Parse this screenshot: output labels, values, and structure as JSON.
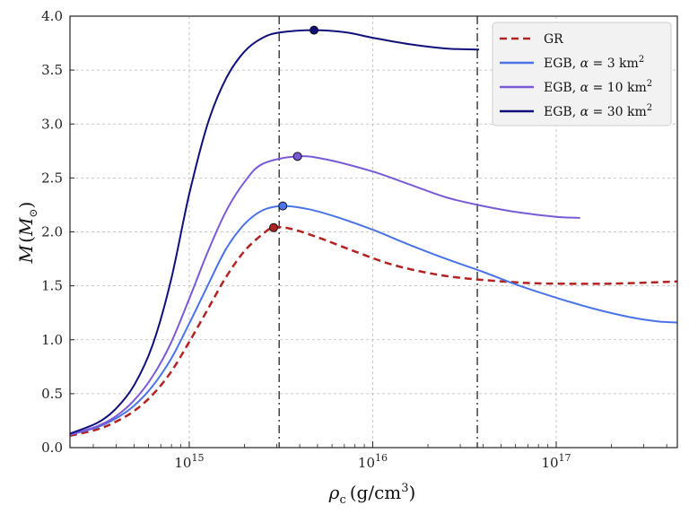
{
  "chart_data": {
    "type": "line",
    "xscale": "log",
    "xlim_log10": [
      14.35,
      17.66
    ],
    "ylim": [
      0.0,
      4.0
    ],
    "yticks": [
      0.0,
      0.5,
      1.0,
      1.5,
      2.0,
      2.5,
      3.0,
      3.5,
      4.0
    ],
    "ytick_labels": [
      "0.0",
      "0.5",
      "1.0",
      "1.5",
      "2.0",
      "2.5",
      "3.0",
      "3.5",
      "4.0"
    ],
    "xticks_log10": [
      15,
      16,
      17
    ],
    "xtick_labels": [
      {
        "base": "10",
        "exp": "15"
      },
      {
        "base": "10",
        "exp": "16"
      },
      {
        "base": "10",
        "exp": "17"
      }
    ],
    "xlabel": {
      "rho": "ρ",
      "sub": "c",
      "unit": "(g/cm",
      "sup": "3",
      "close": ")"
    },
    "ylabel": {
      "M": "M",
      "open": "(",
      "Msym": "M",
      "sub": "⊙",
      "close": ")"
    },
    "grid": true,
    "legend_position": "top-right",
    "vlines_log10": [
      15.49,
      16.57
    ],
    "series": [
      {
        "name": "GR",
        "legend": {
          "text": "GR"
        },
        "color": "#b22222",
        "dash": true,
        "points": [
          [
            14.35,
            0.11
          ],
          [
            14.5,
            0.17
          ],
          [
            14.6,
            0.24
          ],
          [
            14.7,
            0.34
          ],
          [
            14.8,
            0.49
          ],
          [
            14.9,
            0.7
          ],
          [
            15.0,
            0.98
          ],
          [
            15.1,
            1.28
          ],
          [
            15.2,
            1.58
          ],
          [
            15.3,
            1.82
          ],
          [
            15.4,
            1.98
          ],
          [
            15.46,
            2.04
          ],
          [
            15.55,
            2.03
          ],
          [
            15.7,
            1.95
          ],
          [
            15.9,
            1.82
          ],
          [
            16.1,
            1.7
          ],
          [
            16.3,
            1.62
          ],
          [
            16.5,
            1.57
          ],
          [
            16.8,
            1.53
          ],
          [
            17.0,
            1.52
          ],
          [
            17.3,
            1.52
          ],
          [
            17.66,
            1.54
          ]
        ],
        "peak": [
          15.46,
          2.04
        ]
      },
      {
        "name": "EGB a3",
        "legend": {
          "text": "EGB, ",
          "alpha": "α",
          "rest": " = 3 km",
          "sup": "2"
        },
        "color": "#4a74e6",
        "dash": false,
        "points": [
          [
            14.35,
            0.12
          ],
          [
            14.5,
            0.19
          ],
          [
            14.6,
            0.27
          ],
          [
            14.7,
            0.39
          ],
          [
            14.8,
            0.57
          ],
          [
            14.9,
            0.82
          ],
          [
            15.0,
            1.15
          ],
          [
            15.1,
            1.5
          ],
          [
            15.2,
            1.84
          ],
          [
            15.3,
            2.07
          ],
          [
            15.4,
            2.2
          ],
          [
            15.51,
            2.24
          ],
          [
            15.65,
            2.21
          ],
          [
            15.8,
            2.14
          ],
          [
            16.0,
            2.02
          ],
          [
            16.2,
            1.88
          ],
          [
            16.4,
            1.75
          ],
          [
            16.6,
            1.63
          ],
          [
            16.8,
            1.5
          ],
          [
            17.0,
            1.39
          ],
          [
            17.2,
            1.29
          ],
          [
            17.4,
            1.21
          ],
          [
            17.55,
            1.17
          ],
          [
            17.66,
            1.16
          ]
        ],
        "peak": [
          15.51,
          2.24
        ]
      },
      {
        "name": "EGB a10",
        "legend": {
          "text": "EGB, ",
          "alpha": "α",
          "rest": " = 10 km",
          "sup": "2"
        },
        "color": "#7b5ad6",
        "dash": false,
        "points": [
          [
            14.35,
            0.12
          ],
          [
            14.5,
            0.2
          ],
          [
            14.6,
            0.29
          ],
          [
            14.7,
            0.44
          ],
          [
            14.8,
            0.66
          ],
          [
            14.9,
            0.97
          ],
          [
            15.0,
            1.38
          ],
          [
            15.1,
            1.81
          ],
          [
            15.2,
            2.19
          ],
          [
            15.3,
            2.46
          ],
          [
            15.4,
            2.63
          ],
          [
            15.59,
            2.7
          ],
          [
            15.75,
            2.67
          ],
          [
            16.0,
            2.56
          ],
          [
            16.2,
            2.44
          ],
          [
            16.4,
            2.32
          ],
          [
            16.6,
            2.24
          ],
          [
            16.8,
            2.18
          ],
          [
            17.0,
            2.14
          ],
          [
            17.13,
            2.13
          ]
        ],
        "peak": [
          15.59,
          2.7
        ]
      },
      {
        "name": "EGB a30",
        "legend": {
          "text": "EGB, ",
          "alpha": "α",
          "rest": " = 30 km",
          "sup": "2"
        },
        "color": "#10107a",
        "dash": false,
        "points": [
          [
            14.35,
            0.13
          ],
          [
            14.5,
            0.23
          ],
          [
            14.6,
            0.36
          ],
          [
            14.7,
            0.58
          ],
          [
            14.8,
            0.95
          ],
          [
            14.9,
            1.55
          ],
          [
            15.0,
            2.35
          ],
          [
            15.1,
            3.0
          ],
          [
            15.2,
            3.42
          ],
          [
            15.3,
            3.67
          ],
          [
            15.4,
            3.8
          ],
          [
            15.5,
            3.85
          ],
          [
            15.68,
            3.87
          ],
          [
            15.85,
            3.85
          ],
          [
            16.0,
            3.8
          ],
          [
            16.2,
            3.74
          ],
          [
            16.4,
            3.7
          ],
          [
            16.58,
            3.69
          ]
        ],
        "peak": [
          15.68,
          3.87
        ]
      }
    ]
  }
}
